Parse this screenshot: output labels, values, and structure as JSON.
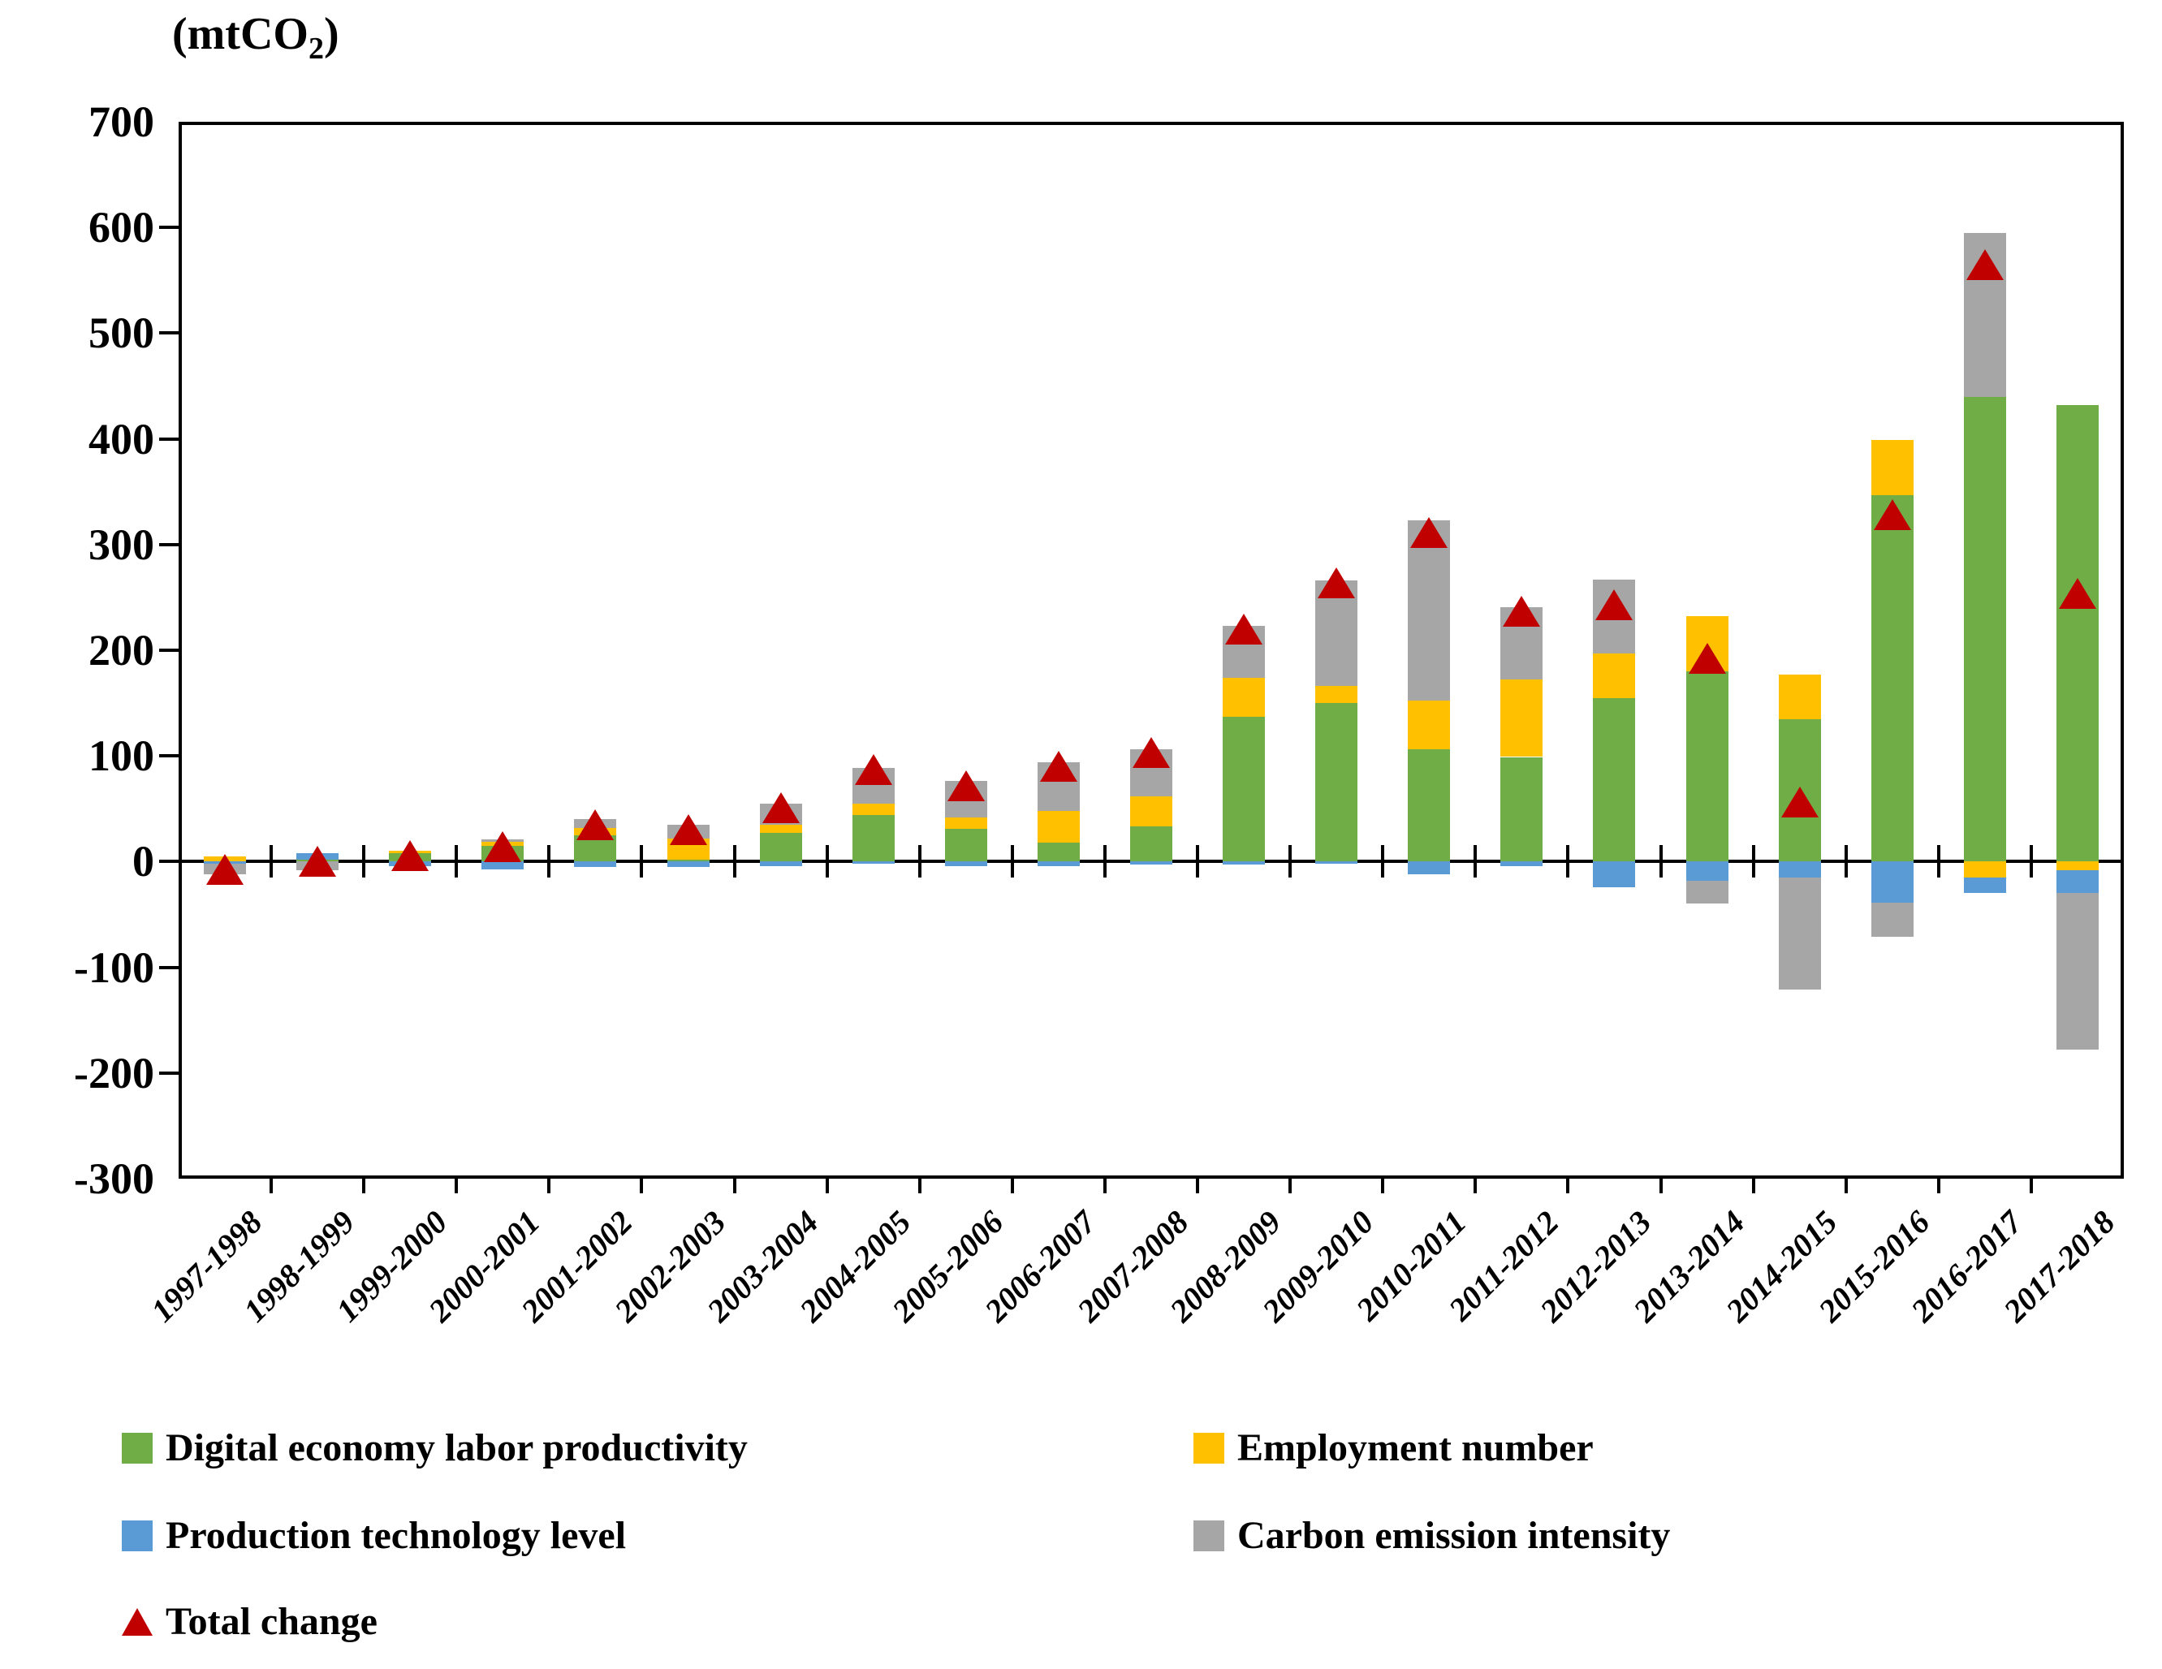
{
  "title": {
    "prefix": "(mtCO",
    "sub": "2",
    "suffix": ")"
  },
  "chart_data": {
    "type": "bar",
    "stacked": true,
    "title": "(mtCO2)",
    "xlabel": "",
    "ylabel": "(mtCO2)",
    "ylim": [
      -300,
      700
    ],
    "ytick_step": 100,
    "y_ticks": [
      700,
      600,
      500,
      400,
      300,
      200,
      100,
      0,
      -100,
      -200,
      -300
    ],
    "grid": false,
    "legend_position": "bottom",
    "categories": [
      "1997-1998",
      "1998-1999",
      "1999-2000",
      "2000-2001",
      "2001-2002",
      "2002-2003",
      "2003-2004",
      "2004-2005",
      "2005-2006",
      "2006-2007",
      "2007-2008",
      "2008-2009",
      "2009-2010",
      "2010-2011",
      "2011-2012",
      "2012-2013",
      "2013-2014",
      "2014-2015",
      "2015-2016",
      "2016-2017",
      "2017-2018"
    ],
    "series": [
      {
        "name": "Digital economy labor productivity",
        "key": "digital-economy-labor-productivity",
        "marker": "square",
        "color": "#70AD47",
        "values": [
          0,
          2,
          8,
          15,
          25,
          2,
          27,
          44,
          31,
          18,
          33,
          137,
          150,
          106,
          99,
          155,
          180,
          135,
          347,
          440,
          432
        ]
      },
      {
        "name": "Employment number",
        "key": "employment-number",
        "marker": "square",
        "color": "#FFC000",
        "values": [
          5,
          0,
          2,
          4,
          7,
          20,
          8,
          11,
          11,
          30,
          29,
          37,
          16,
          46,
          73,
          42,
          52,
          42,
          52,
          -15,
          -8
        ]
      },
      {
        "name": "Production technology level",
        "key": "production-technology-level",
        "marker": "square",
        "color": "#5B9BD5",
        "values": [
          -2,
          6,
          -4,
          -7,
          -5,
          -5,
          -4,
          -2,
          -4,
          -4,
          -3,
          -3,
          -2,
          -12,
          -4,
          -24,
          -18,
          -15,
          -39,
          -15,
          -22
        ]
      },
      {
        "name": "Carbon emission intensity",
        "key": "carbon-emission-intensity",
        "marker": "square",
        "color": "#A6A6A6",
        "values": [
          -10,
          -8,
          0,
          2,
          8,
          13,
          20,
          34,
          34,
          46,
          44,
          49,
          100,
          171,
          69,
          70,
          -22,
          -106,
          -32,
          155,
          -148
        ]
      },
      {
        "name": "Total change",
        "key": "total-change",
        "marker": "triangle",
        "color": "#C00000",
        "values": [
          -7,
          0,
          6,
          14,
          35,
          30,
          51,
          87,
          72,
          90,
          103,
          220,
          264,
          311,
          237,
          243,
          192,
          56,
          328,
          565,
          254
        ]
      }
    ]
  }
}
